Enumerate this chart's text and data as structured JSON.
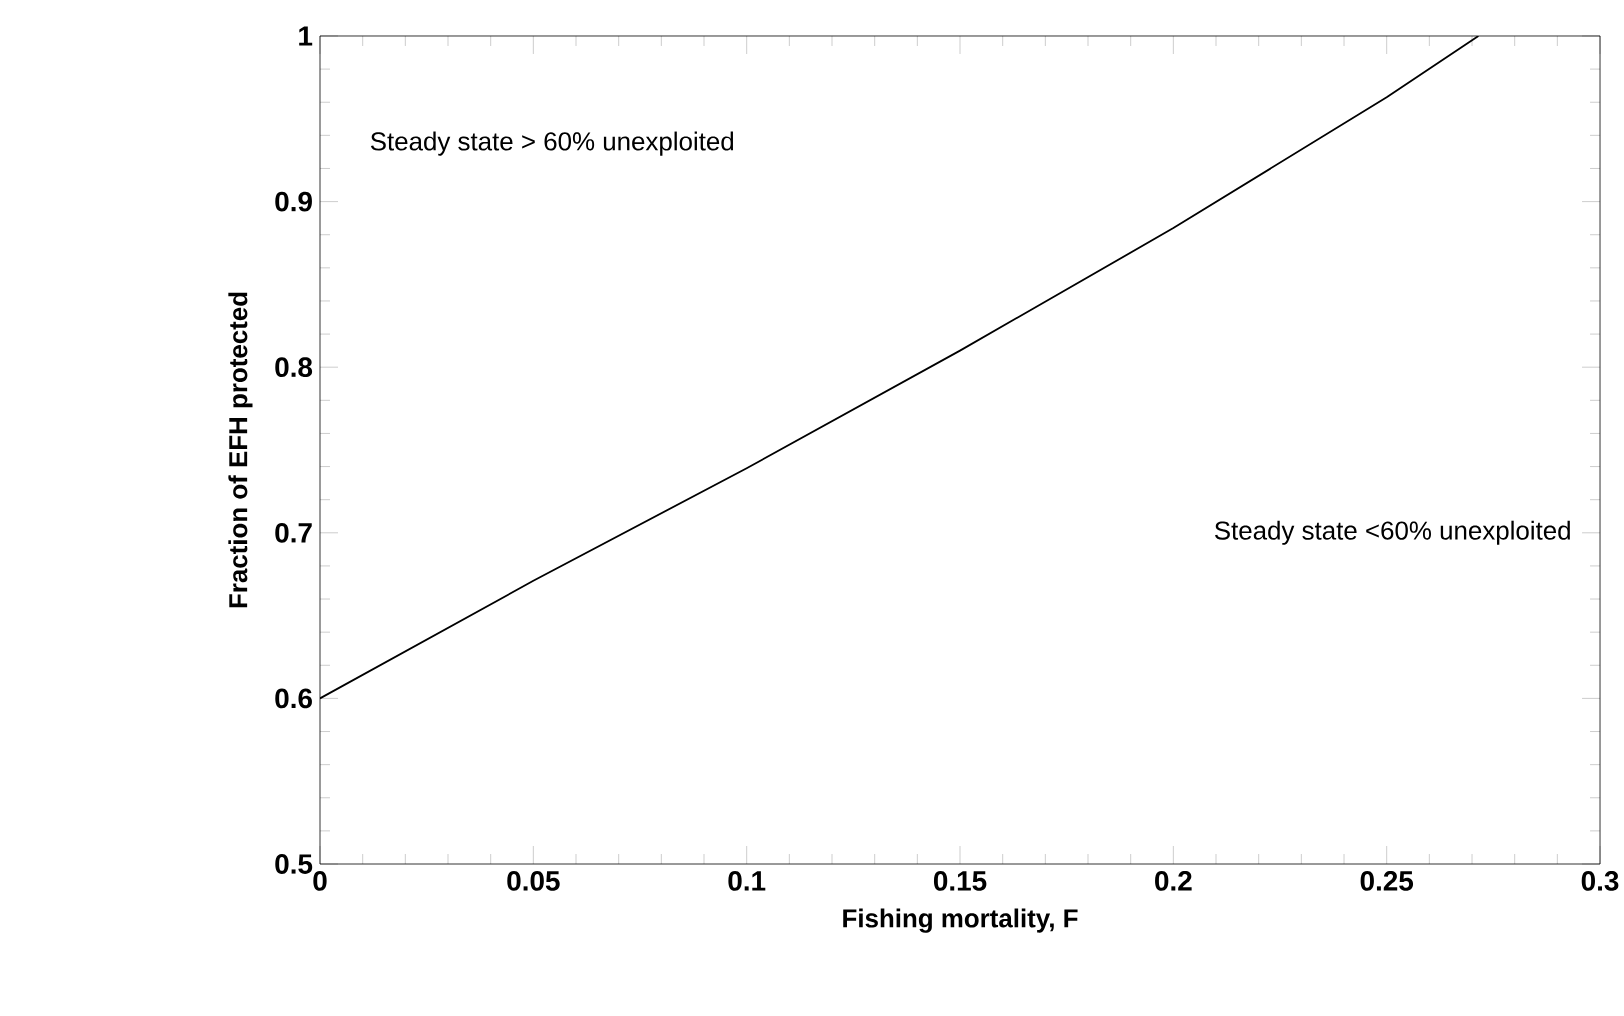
{
  "chart_data": {
    "type": "line",
    "xlabel": "Fishing mortality, F",
    "ylabel": "Fraction of EFH protected",
    "x": [
      0,
      0.05,
      0.1,
      0.15,
      0.2,
      0.25,
      0.2715
    ],
    "series": [
      {
        "color": "#000000",
        "values": [
          0.6,
          0.671,
          0.739,
          0.81,
          0.884,
          0.963,
          1.0
        ]
      }
    ],
    "xlim": [
      0,
      0.3
    ],
    "ylim": [
      0.5,
      1
    ],
    "xticks": [
      0,
      0.05,
      0.1,
      0.15,
      0.2,
      0.25,
      0.3
    ],
    "yticks": [
      0.5,
      0.6,
      0.7,
      0.8,
      0.9,
      1
    ],
    "annotations": [
      "Steady state > 60% unexploited",
      "Steady state <60% unexploited"
    ],
    "grid": false,
    "marker": "none",
    "line_style": "solid"
  }
}
